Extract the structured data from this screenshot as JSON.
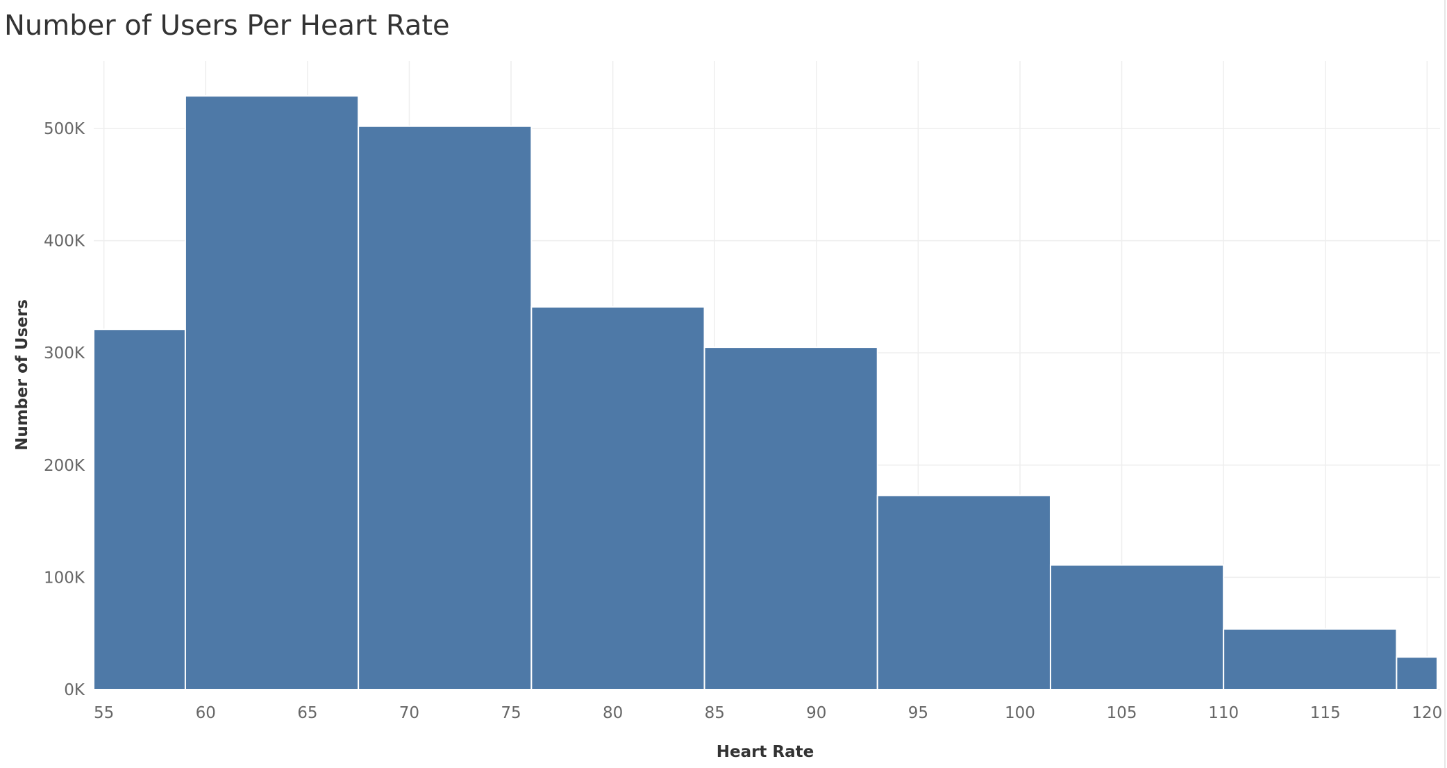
{
  "chart_data": {
    "type": "bar",
    "title": "Number of Users Per Heart Rate",
    "xlabel": "Heart Rate",
    "ylabel": "Number of Users",
    "bar_color": "#4e79a7",
    "bar_edge_color": "#ffffff",
    "grid_color": "#eeeeee",
    "grid": true,
    "xlim": [
      54.5,
      120.5
    ],
    "ylim": [
      0,
      560000
    ],
    "x_ticks": [
      "55",
      "60",
      "65",
      "70",
      "75",
      "80",
      "85",
      "90",
      "95",
      "100",
      "105",
      "110",
      "115",
      "120"
    ],
    "x_tick_values": [
      55,
      60,
      65,
      70,
      75,
      80,
      85,
      90,
      95,
      100,
      105,
      110,
      115,
      120
    ],
    "y_ticks": [
      "0K",
      "100K",
      "200K",
      "300K",
      "400K",
      "500K"
    ],
    "y_tick_values": [
      0,
      100000,
      200000,
      300000,
      400000,
      500000
    ],
    "bins": [
      {
        "x_start": 54.5,
        "x_end": 59.0,
        "value": 321000
      },
      {
        "x_start": 59.0,
        "x_end": 67.5,
        "value": 529000
      },
      {
        "x_start": 67.5,
        "x_end": 76.0,
        "value": 502000
      },
      {
        "x_start": 76.0,
        "x_end": 84.5,
        "value": 341000
      },
      {
        "x_start": 84.5,
        "x_end": 93.0,
        "value": 305000
      },
      {
        "x_start": 93.0,
        "x_end": 101.5,
        "value": 173000
      },
      {
        "x_start": 101.5,
        "x_end": 110.0,
        "value": 111000
      },
      {
        "x_start": 110.0,
        "x_end": 118.5,
        "value": 54000
      },
      {
        "x_start": 118.5,
        "x_end": 120.5,
        "value": 29000
      }
    ]
  }
}
